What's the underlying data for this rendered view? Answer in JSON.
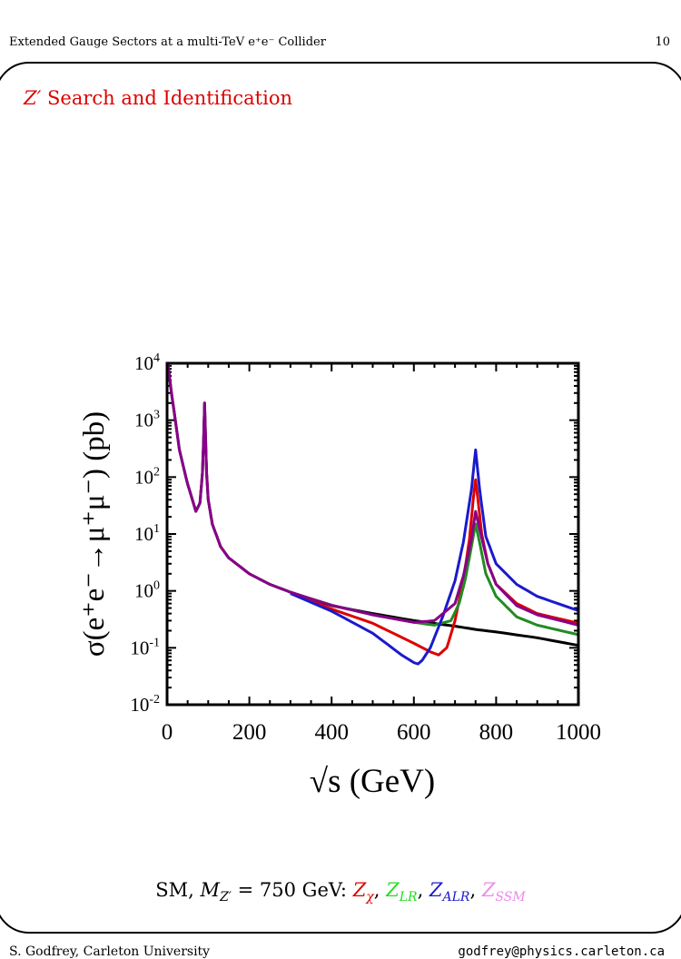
{
  "header": {
    "title": "Extended Gauge Sectors at a multi-TeV e⁺e⁻ Collider",
    "page_number": "10"
  },
  "slide": {
    "title_symbol": "Z′",
    "title_text": "Search and Identification"
  },
  "caption": {
    "prefix": "SM, ",
    "mass_symbol": "M",
    "mass_sub": "Z′",
    "mass_value": " = 750 GeV: ",
    "models": [
      {
        "symbol": "Z",
        "sub": "χ",
        "color": "#dd0000",
        "sep": ", "
      },
      {
        "symbol": "Z",
        "sub": "LR",
        "color": "#22dd22",
        "sep": ", "
      },
      {
        "symbol": "Z",
        "sub": "ALR",
        "color": "#1a1acc",
        "sep": ", "
      },
      {
        "symbol": "Z",
        "sub": "SSM",
        "color": "#ee88ee",
        "sep": ""
      }
    ]
  },
  "footer": {
    "left": "S. Godfrey, Carleton University",
    "right": "godfrey@physics.carleton.ca"
  },
  "chart_data": {
    "type": "line",
    "xlabel": "√s  (GeV)",
    "ylabel": "σ(e⁺e⁻→μ⁺μ⁻)  (pb)",
    "xlim": [
      0,
      1000
    ],
    "ylim_log10": [
      -2,
      4
    ],
    "y_scale": "log",
    "xticks": [
      "0",
      "200",
      "400",
      "600",
      "800",
      "1000"
    ],
    "yticks": [
      {
        "base": "10",
        "exp": "4"
      },
      {
        "base": "10",
        "exp": "3"
      },
      {
        "base": "10",
        "exp": "2"
      },
      {
        "base": "10",
        "exp": "1"
      },
      {
        "base": "10",
        "exp": "0"
      },
      {
        "base": "10",
        "exp": "-1"
      },
      {
        "base": "10",
        "exp": "-2"
      }
    ],
    "series": [
      {
        "color": "#000000",
        "x": [
          2,
          10,
          30,
          50,
          70,
          80,
          86,
          89,
          91.2,
          93,
          96,
          100,
          110,
          130,
          150,
          200,
          250,
          300,
          400,
          500,
          600,
          700,
          750,
          800,
          900,
          1000
        ],
        "y": [
          10000,
          3300,
          300,
          75,
          25,
          35,
          120,
          500,
          2000,
          700,
          120,
          40,
          15,
          6,
          3.8,
          2.0,
          1.3,
          0.95,
          0.55,
          0.4,
          0.3,
          0.24,
          0.21,
          0.19,
          0.15,
          0.11
        ]
      },
      {
        "color": "#dd0000",
        "x": [
          300,
          400,
          500,
          600,
          640,
          660,
          680,
          700,
          720,
          735,
          745,
          750,
          755,
          765,
          780,
          800,
          850,
          900,
          1000
        ],
        "y": [
          0.93,
          0.48,
          0.27,
          0.12,
          0.085,
          0.075,
          0.1,
          0.3,
          1.5,
          8,
          45,
          90,
          45,
          10,
          3,
          1.3,
          0.6,
          0.4,
          0.27
        ]
      },
      {
        "color": "#228b22",
        "x": [
          300,
          400,
          500,
          600,
          650,
          690,
          710,
          725,
          740,
          750,
          760,
          775,
          800,
          850,
          900,
          1000
        ],
        "y": [
          0.95,
          0.56,
          0.38,
          0.28,
          0.25,
          0.3,
          0.6,
          1.6,
          6,
          15,
          7,
          2,
          0.8,
          0.35,
          0.25,
          0.17
        ]
      },
      {
        "color": "#1a1acc",
        "x": [
          300,
          400,
          500,
          570,
          600,
          610,
          620,
          640,
          670,
          700,
          720,
          740,
          750,
          760,
          775,
          800,
          850,
          900,
          1000
        ],
        "y": [
          0.9,
          0.44,
          0.18,
          0.075,
          0.055,
          0.052,
          0.06,
          0.1,
          0.35,
          1.5,
          7,
          60,
          300,
          60,
          9,
          3,
          1.3,
          0.8,
          0.45
        ]
      },
      {
        "color": "#880088",
        "x": [
          2,
          10,
          30,
          50,
          70,
          80,
          86,
          89,
          91.2,
          93,
          96,
          100,
          110,
          130,
          150,
          200,
          250,
          300,
          400,
          500,
          600,
          650,
          700,
          720,
          740,
          750,
          760,
          780,
          800,
          850,
          900,
          1000
        ],
        "y": [
          10000,
          3300,
          300,
          75,
          25,
          35,
          120,
          500,
          2000,
          700,
          120,
          40,
          15,
          6,
          3.8,
          2.0,
          1.3,
          0.95,
          0.56,
          0.38,
          0.28,
          0.3,
          0.6,
          1.8,
          8,
          25,
          12,
          3,
          1.3,
          0.55,
          0.38,
          0.25
        ]
      }
    ]
  }
}
